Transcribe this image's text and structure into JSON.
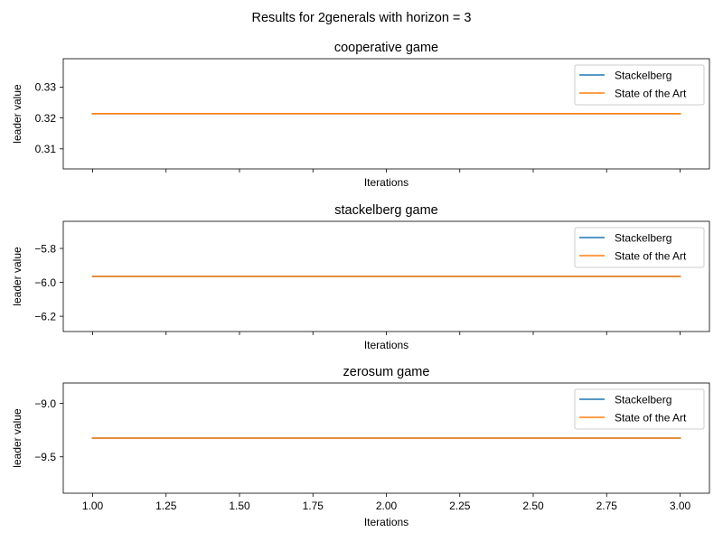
{
  "figure": {
    "suptitle": "Results for 2generals with horizon = 3"
  },
  "colors": {
    "Stackelberg": "#1f77b4",
    "State of the Art": "#ff7f0e"
  },
  "chart_data": [
    {
      "type": "line",
      "title": "cooperative game",
      "xlabel": "Iterations",
      "ylabel": "leader value",
      "xlim": [
        0.9,
        3.1
      ],
      "ylim": [
        0.3035,
        0.3392
      ],
      "xticks": [
        1.0,
        1.25,
        1.5,
        1.75,
        2.0,
        2.25,
        2.5,
        2.75,
        3.0
      ],
      "xtick_labels_shown": false,
      "yticks": [
        0.31,
        0.32,
        0.33
      ],
      "ytick_labels": [
        "0.31",
        "0.32",
        "0.33"
      ],
      "grid": false,
      "legend": "upper right",
      "x": [
        1,
        2,
        3
      ],
      "series": [
        {
          "name": "Stackelberg",
          "values": [
            0.3214,
            0.3214,
            0.3214
          ]
        },
        {
          "name": "State of the Art",
          "values": [
            0.3214,
            0.3214,
            0.3214
          ]
        }
      ]
    },
    {
      "type": "line",
      "title": "stackelberg game",
      "xlabel": "Iterations",
      "ylabel": "leader value",
      "xlim": [
        0.9,
        3.1
      ],
      "ylim": [
        -6.29,
        -5.64
      ],
      "xticks": [
        1.0,
        1.25,
        1.5,
        1.75,
        2.0,
        2.25,
        2.5,
        2.75,
        3.0
      ],
      "xtick_labels_shown": false,
      "yticks": [
        -6.2,
        -6.0,
        -5.8
      ],
      "ytick_labels": [
        "−6.2",
        "−6.0",
        "−5.8"
      ],
      "grid": false,
      "legend": "upper right",
      "x": [
        1,
        2,
        3
      ],
      "series": [
        {
          "name": "Stackelberg",
          "values": [
            -5.965,
            -5.965,
            -5.965
          ]
        },
        {
          "name": "State of the Art",
          "values": [
            -5.965,
            -5.965,
            -5.965
          ]
        }
      ]
    },
    {
      "type": "line",
      "title": "zerosum game",
      "xlabel": "Iterations",
      "ylabel": "leader value",
      "xlim": [
        0.9,
        3.1
      ],
      "ylim": [
        -9.84,
        -8.81
      ],
      "xticks": [
        1.0,
        1.25,
        1.5,
        1.75,
        2.0,
        2.25,
        2.5,
        2.75,
        3.0
      ],
      "xtick_labels_shown": true,
      "xtick_labels": [
        "1.00",
        "1.25",
        "1.50",
        "1.75",
        "2.00",
        "2.25",
        "2.50",
        "2.75",
        "3.00"
      ],
      "yticks": [
        -9.5,
        -9.0
      ],
      "ytick_labels": [
        "−9.5",
        "−9.0"
      ],
      "grid": false,
      "legend": "upper right",
      "x": [
        1,
        2,
        3
      ],
      "series": [
        {
          "name": "Stackelberg",
          "values": [
            -9.325,
            -9.325,
            -9.325
          ]
        },
        {
          "name": "State of the Art",
          "values": [
            -9.325,
            -9.325,
            -9.325
          ]
        }
      ]
    }
  ]
}
